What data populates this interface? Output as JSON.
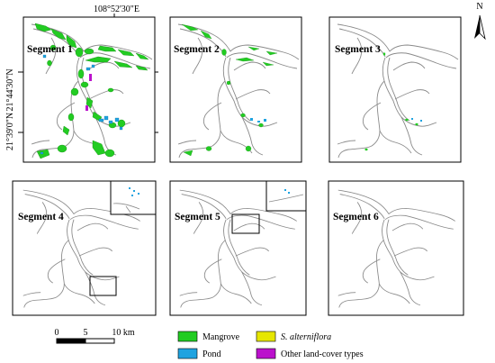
{
  "coordinates": {
    "top_longitude": "108°52'30\"E",
    "left_latitude_upper": "21°44'30\"N",
    "left_latitude_lower": "21°39'0\"N"
  },
  "north_arrow": {
    "label": "N",
    "icon": "north-arrow-icon"
  },
  "panels": [
    {
      "title": "Segment 1"
    },
    {
      "title": "Segment 2"
    },
    {
      "title": "Segment 3"
    },
    {
      "title": "Segment 4"
    },
    {
      "title": "Segment 5"
    },
    {
      "title": "Segment 6"
    }
  ],
  "scale_bar": {
    "labels": [
      "0",
      "5",
      "10 km"
    ]
  },
  "legend": {
    "items": [
      {
        "label": "Mangrove",
        "color": "#22cc22",
        "italic": false
      },
      {
        "label": "S. alterniflora",
        "color": "#e6e600",
        "italic": true
      },
      {
        "label": "Pond",
        "color": "#1fa3e0",
        "italic": false
      },
      {
        "label": "Other land-cover types",
        "color": "#bb11cc",
        "italic": false
      }
    ]
  }
}
